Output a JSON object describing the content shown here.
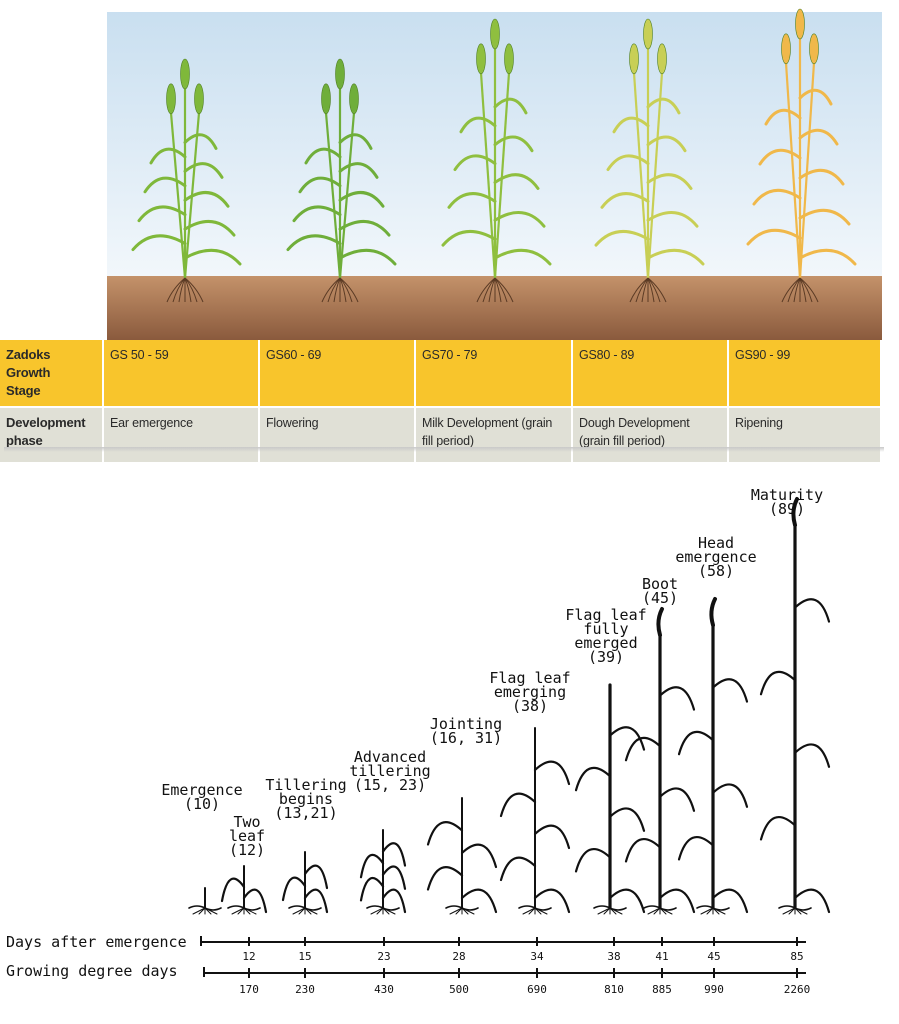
{
  "growth_table": {
    "zadoks_header": [
      "Zadoks Growth",
      "Stage"
    ],
    "phase_header": [
      "Development",
      "phase"
    ],
    "stages": [
      {
        "zadoks": "GS 50 - 59",
        "phase": [
          "Ear emergence"
        ]
      },
      {
        "zadoks": "GS60 - 69",
        "phase": [
          "Flowering"
        ]
      },
      {
        "zadoks": "GS70 - 79",
        "phase": [
          "Milk Development (grain",
          "fill period)"
        ]
      },
      {
        "zadoks": "GS80 - 89",
        "phase": [
          "Dough Development",
          "(grain fill period)"
        ]
      },
      {
        "zadoks": "GS90 - 99",
        "phase": [
          "Ripening"
        ]
      }
    ]
  },
  "scene_colors": {
    "sky_top": "#c9dff0",
    "sky_bottom": "#f2f7fb",
    "soil_top": "#c4926a",
    "soil_bottom": "#8a5a3d",
    "zadoks_row": "#f8c52c",
    "phase_row": "#e0e0d6",
    "plant_stages": [
      "#7fb83a",
      "#6fae3a",
      "#8fbf3f",
      "#c8cf55",
      "#f0b84a"
    ]
  },
  "diagram": {
    "labels": [
      {
        "lines": [
          "Emergence",
          "(10)"
        ]
      },
      {
        "lines": [
          "Two",
          "leaf",
          "(12)"
        ]
      },
      {
        "lines": [
          "Tillering",
          "begins",
          "(13,21)"
        ]
      },
      {
        "lines": [
          "Advanced",
          "tillering",
          "(15, 23)"
        ]
      },
      {
        "lines": [
          "Jointing",
          "(16, 31)"
        ]
      },
      {
        "lines": [
          "Flag leaf",
          "emerging",
          "(38)"
        ]
      },
      {
        "lines": [
          "Flag leaf",
          "fully",
          "emerged",
          "(39)"
        ]
      },
      {
        "lines": [
          "Boot",
          "(45)"
        ]
      },
      {
        "lines": [
          "Head",
          "emergence",
          "(58)"
        ]
      },
      {
        "lines": [
          "Maturity",
          "(89)"
        ]
      }
    ],
    "days_label": "Days after emergence",
    "gdd_label": "Growing degree days",
    "days_values": [
      "12",
      "15",
      "23",
      "28",
      "34",
      "38",
      "41",
      "45",
      "85"
    ],
    "gdd_values": [
      "170",
      "230",
      "430",
      "500",
      "690",
      "810",
      "885",
      "990",
      "2260"
    ]
  }
}
